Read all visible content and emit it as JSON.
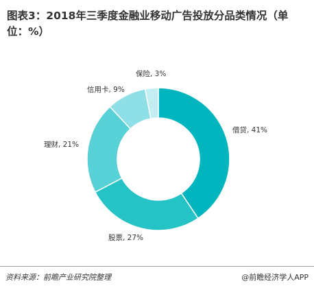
{
  "title": "图表3：2018年三季度金融业移动广告投放分品类情况（单位：%）",
  "source": "资料来源：前瞻产业研究院整理",
  "watermark": "@前瞻经济学人APP",
  "chart_data": {
    "type": "pie",
    "donut": true,
    "title": "图表3：2018年三季度金融业移动广告投放分品类情况（单位：%）",
    "slices": [
      {
        "label": "借贷, 41%",
        "name": "借贷",
        "value": 41,
        "color": "#00b5bd"
      },
      {
        "label": "股票, 27%",
        "name": "股票",
        "value": 27,
        "color": "#26c3c6"
      },
      {
        "label": "理财, 21%",
        "name": "理财",
        "value": 21,
        "color": "#57d0d6"
      },
      {
        "label": "信用卡, 9%",
        "name": "信用卡",
        "value": 9,
        "color": "#8ee0e6"
      },
      {
        "label": "保险, 3%",
        "name": "保险",
        "value": 3,
        "color": "#c2eef2"
      }
    ]
  }
}
